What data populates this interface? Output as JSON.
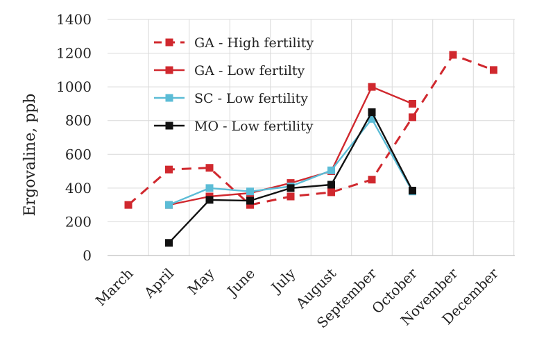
{
  "chart_data": {
    "type": "line",
    "title": "",
    "xlabel": "",
    "ylabel": "Ergovaline, ppb",
    "ylim": [
      0,
      1400
    ],
    "yticks": [
      0,
      200,
      400,
      600,
      800,
      1000,
      1200,
      1400
    ],
    "grid": true,
    "legend_position": "top-left",
    "categories": [
      "March",
      "April",
      "May",
      "June",
      "July",
      "August",
      "September",
      "October",
      "November",
      "December"
    ],
    "series": [
      {
        "name": "GA - High fertility",
        "color": "#d0282e",
        "dashed": true,
        "values": [
          300,
          510,
          520,
          300,
          350,
          375,
          450,
          820,
          1190,
          1100
        ]
      },
      {
        "name": "GA - Low fertilty",
        "color": "#d0282e",
        "dashed": false,
        "values": [
          null,
          300,
          350,
          370,
          430,
          500,
          1000,
          900,
          null,
          null
        ]
      },
      {
        "name": "SC - Low fertility",
        "color": "#5bbcd6",
        "dashed": false,
        "values": [
          null,
          300,
          400,
          380,
          410,
          505,
          810,
          380,
          null,
          null
        ]
      },
      {
        "name": "MO - Low fertility",
        "color": "#111111",
        "dashed": false,
        "values": [
          null,
          75,
          330,
          325,
          400,
          420,
          850,
          385,
          null,
          null
        ]
      }
    ]
  }
}
